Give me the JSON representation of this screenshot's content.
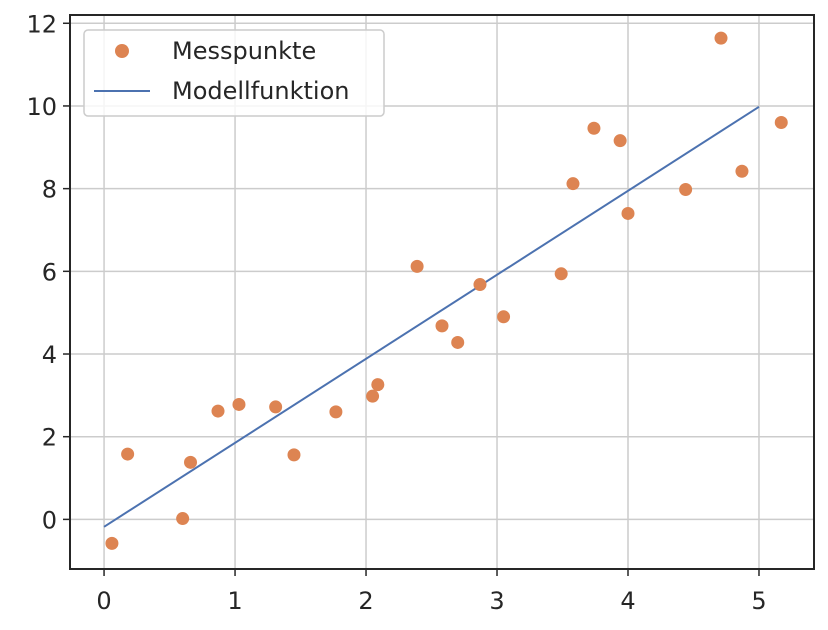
{
  "chart_data": {
    "type": "scatter",
    "title": "",
    "xlabel": "",
    "ylabel": "",
    "xlim": [
      -0.26,
      5.42
    ],
    "ylim": [
      -1.2,
      12.2
    ],
    "xticks": [
      0,
      1,
      2,
      3,
      4,
      5
    ],
    "yticks": [
      0,
      2,
      4,
      6,
      8,
      10,
      12
    ],
    "grid": true,
    "legend_position": "top-left",
    "series": [
      {
        "name": "Messpunkte",
        "kind": "scatter",
        "color": "#dd8452",
        "points": [
          [
            0.06,
            -0.58
          ],
          [
            0.18,
            1.58
          ],
          [
            0.6,
            0.02
          ],
          [
            0.66,
            1.38
          ],
          [
            0.87,
            2.62
          ],
          [
            1.03,
            2.78
          ],
          [
            1.31,
            2.72
          ],
          [
            1.45,
            1.56
          ],
          [
            1.77,
            2.6
          ],
          [
            2.05,
            2.98
          ],
          [
            2.09,
            3.26
          ],
          [
            2.39,
            6.12
          ],
          [
            2.58,
            4.68
          ],
          [
            2.7,
            4.28
          ],
          [
            2.87,
            5.68
          ],
          [
            3.05,
            4.9
          ],
          [
            3.49,
            5.94
          ],
          [
            3.58,
            8.12
          ],
          [
            3.74,
            9.46
          ],
          [
            3.94,
            9.16
          ],
          [
            4.0,
            7.4
          ],
          [
            4.44,
            7.98
          ],
          [
            4.71,
            11.64
          ],
          [
            4.87,
            8.42
          ],
          [
            5.17,
            9.6
          ]
        ]
      },
      {
        "name": "Modellfunktion",
        "kind": "line",
        "color": "#4c72b0",
        "points": [
          [
            0,
            -0.18
          ],
          [
            5,
            9.98
          ]
        ]
      }
    ]
  }
}
